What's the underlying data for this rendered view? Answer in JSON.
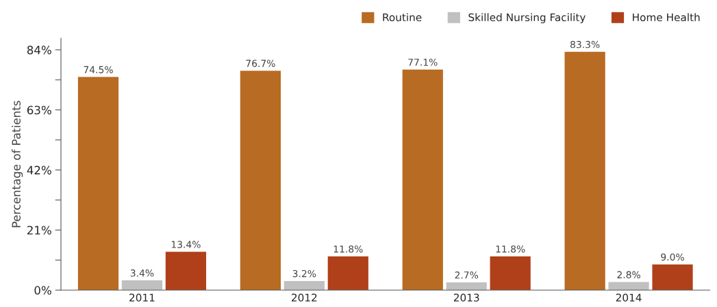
{
  "chart_data": {
    "type": "bar",
    "ylabel": "Percentage of Patients",
    "categories": [
      "2011",
      "2012",
      "2013",
      "2014"
    ],
    "series": [
      {
        "name": "Routine",
        "color": "#b86b22",
        "values": [
          74.5,
          76.7,
          77.1,
          83.3
        ],
        "value_labels": [
          "74.5%",
          "76.7%",
          "77.1%",
          "83.3%"
        ]
      },
      {
        "name": "Skilled Nursing Facility",
        "color": "#c0c0c0",
        "values": [
          3.4,
          3.2,
          2.7,
          2.8
        ],
        "value_labels": [
          "3.4%",
          "3.2%",
          "2.7%",
          "2.8%"
        ]
      },
      {
        "name": "Home Health",
        "color": "#b0401a",
        "values": [
          13.4,
          11.8,
          11.8,
          9.0
        ],
        "value_labels": [
          "13.4%",
          "11.8%",
          "11.8%",
          "9.0%"
        ]
      }
    ],
    "ylim": [
      0,
      88
    ],
    "yticks": [
      {
        "value": 0,
        "label": "0%"
      },
      {
        "value": 10.5,
        "label": null
      },
      {
        "value": 21,
        "label": "21%"
      },
      {
        "value": 31.5,
        "label": null
      },
      {
        "value": 42,
        "label": "42%"
      },
      {
        "value": 52.5,
        "label": null
      },
      {
        "value": 63,
        "label": "63%"
      },
      {
        "value": 73.5,
        "label": null
      },
      {
        "value": 84,
        "label": "84%"
      }
    ],
    "grid": false,
    "legend": "top right"
  }
}
